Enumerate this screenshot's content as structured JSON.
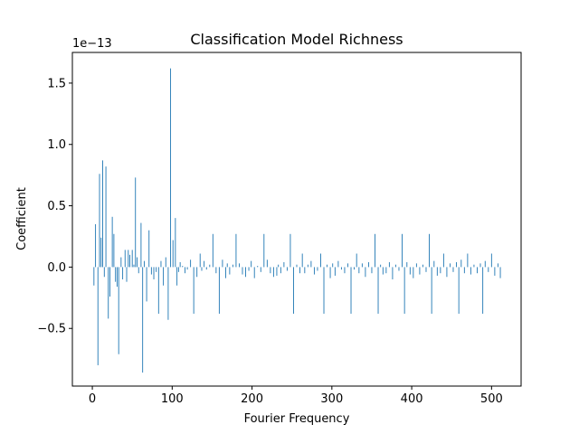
{
  "chart_data": {
    "type": "bar",
    "title": "Classification Model Richness",
    "xlabel": "Fourier Frequency",
    "ylabel": "Coefficient",
    "offset_text": "1e−13",
    "xlim": [
      -25,
      537
    ],
    "ylim": [
      -0.97,
      1.75
    ],
    "xticks": [
      0,
      100,
      200,
      300,
      400,
      500
    ],
    "xtick_labels": [
      "0",
      "100",
      "200",
      "300",
      "400",
      "500"
    ],
    "yticks": [
      -0.5,
      0.0,
      0.5,
      1.0,
      1.5
    ],
    "ytick_labels": [
      "−0.5",
      "0.0",
      "0.5",
      "1.0",
      "1.5"
    ],
    "grid": false,
    "bar_color": "#1f77b4",
    "series": [
      {
        "x": [
          2,
          4,
          7,
          9,
          11,
          13,
          15,
          17,
          20,
          22,
          25,
          27,
          29,
          31,
          33,
          36,
          38,
          41,
          43,
          45,
          47,
          50,
          52,
          54,
          56,
          58,
          61,
          63,
          65,
          68,
          71,
          74,
          77,
          80,
          83,
          86,
          89,
          92,
          95,
          98,
          101,
          104,
          106,
          108,
          110,
          113,
          116,
          119,
          123,
          127,
          131,
          135,
          137,
          140,
          143,
          147,
          151,
          155,
          159,
          163,
          167,
          169,
          172,
          176,
          180,
          184,
          188,
          192,
          196,
          199,
          203,
          207,
          211,
          215,
          219,
          223,
          227,
          231,
          233,
          236,
          240,
          244,
          248,
          252,
          256,
          260,
          263,
          266,
          270,
          274,
          278,
          282,
          286,
          290,
          294,
          298,
          301,
          304,
          308,
          312,
          316,
          320,
          324,
          328,
          331,
          334,
          338,
          342,
          346,
          350,
          354,
          358,
          361,
          364,
          368,
          372,
          376,
          380,
          384,
          388,
          391,
          394,
          398,
          402,
          406,
          410,
          414,
          418,
          422,
          425,
          428,
          432,
          436,
          440,
          444,
          448,
          452,
          456,
          459,
          462,
          466,
          470,
          474,
          478,
          482,
          486,
          489,
          492,
          496,
          500,
          504,
          508,
          511
        ],
        "values": [
          -0.15,
          0.35,
          -0.8,
          0.76,
          0.24,
          0.87,
          -0.08,
          0.82,
          -0.42,
          -0.24,
          0.41,
          0.27,
          -0.12,
          -0.16,
          -0.71,
          0.08,
          -0.1,
          0.14,
          -0.12,
          0.14,
          0.1,
          0.14,
          0.02,
          0.73,
          0.08,
          -0.05,
          0.36,
          -0.86,
          0.05,
          -0.28,
          0.3,
          -0.06,
          -0.1,
          -0.04,
          -0.38,
          0.05,
          -0.15,
          0.08,
          -0.43,
          1.62,
          0.22,
          0.4,
          -0.15,
          -0.04,
          0.04,
          0.01,
          -0.05,
          -0.02,
          0.06,
          -0.38,
          -0.08,
          0.11,
          -0.03,
          0.05,
          -0.02,
          0.02,
          0.27,
          -0.05,
          -0.38,
          0.06,
          -0.09,
          0.03,
          -0.06,
          0.02,
          0.27,
          0.03,
          -0.06,
          -0.08,
          -0.03,
          0.05,
          -0.09,
          0.01,
          -0.04,
          0.27,
          0.06,
          -0.05,
          -0.08,
          -0.07,
          0.02,
          -0.05,
          0.04,
          -0.03,
          0.27,
          -0.38,
          0.02,
          -0.05,
          0.11,
          -0.05,
          0.02,
          0.05,
          -0.06,
          -0.03,
          0.11,
          -0.38,
          0.02,
          -0.09,
          0.03,
          -0.07,
          0.05,
          -0.02,
          -0.05,
          0.03,
          -0.38,
          -0.02,
          0.11,
          -0.05,
          0.03,
          -0.08,
          0.04,
          -0.05,
          0.27,
          -0.38,
          0.02,
          -0.06,
          -0.05,
          0.04,
          -0.1,
          0.02,
          -0.03,
          0.27,
          -0.38,
          0.04,
          -0.06,
          -0.09,
          0.03,
          -0.06,
          0.02,
          -0.04,
          0.27,
          -0.38,
          0.05,
          -0.07,
          -0.05,
          0.11,
          -0.08,
          0.03,
          -0.04,
          0.04,
          -0.38,
          0.06,
          -0.05,
          0.11,
          -0.06,
          0.02,
          -0.05,
          0.03,
          -0.38,
          0.05,
          -0.04,
          0.11,
          -0.07,
          0.03,
          -0.09
        ]
      }
    ]
  }
}
